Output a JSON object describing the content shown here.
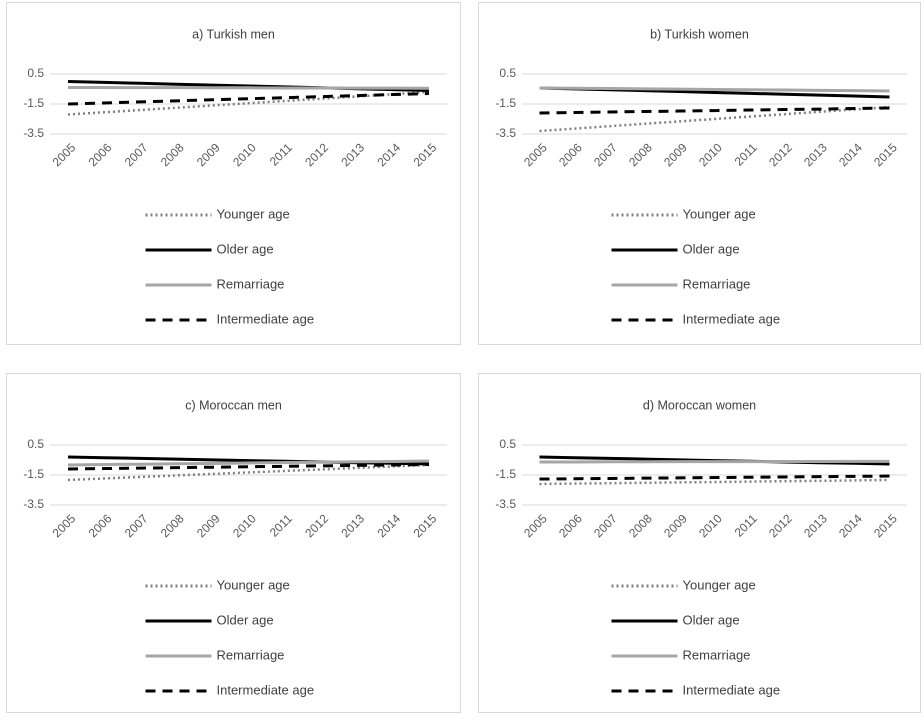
{
  "chart_data": [
    {
      "type": "line",
      "title": "a) Turkish men",
      "categories": [
        "2005",
        "2006",
        "2007",
        "2008",
        "2009",
        "2010",
        "2011",
        "2012",
        "2013",
        "2014",
        "2015"
      ],
      "ylim": [
        -3.5,
        0.5
      ],
      "yticks": [
        0.5,
        -1.5,
        -3.5
      ],
      "grid": true,
      "legend": "bottom",
      "series": [
        {
          "name": "Younger age",
          "color": "#808080",
          "style": "dotted",
          "values": [
            -2.2,
            -2.05,
            -1.9,
            -1.75,
            -1.6,
            -1.45,
            -1.3,
            -1.15,
            -1.0,
            -0.85,
            -0.7
          ]
        },
        {
          "name": "Older age",
          "color": "#000000",
          "style": "solid",
          "values": [
            0.0,
            -0.06,
            -0.12,
            -0.18,
            -0.24,
            -0.3,
            -0.36,
            -0.42,
            -0.48,
            -0.54,
            -0.6
          ]
        },
        {
          "name": "Remarriage",
          "color": "#a6a6a6",
          "style": "solid",
          "values": [
            -0.4,
            -0.4,
            -0.41,
            -0.41,
            -0.42,
            -0.42,
            -0.43,
            -0.43,
            -0.44,
            -0.44,
            -0.45
          ]
        },
        {
          "name": "Intermediate age",
          "color": "#000000",
          "style": "dashed",
          "values": [
            -1.5,
            -1.43,
            -1.36,
            -1.29,
            -1.22,
            -1.15,
            -1.08,
            -1.01,
            -0.94,
            -0.87,
            -0.8
          ]
        }
      ]
    },
    {
      "type": "line",
      "title": "b) Turkish women",
      "categories": [
        "2005",
        "2006",
        "2007",
        "2008",
        "2009",
        "2010",
        "2011",
        "2012",
        "2013",
        "2014",
        "2015"
      ],
      "ylim": [
        -3.5,
        0.5
      ],
      "yticks": [
        0.5,
        -1.5,
        -3.5
      ],
      "grid": true,
      "legend": "bottom",
      "series": [
        {
          "name": "Younger age",
          "color": "#808080",
          "style": "dotted",
          "values": [
            -3.3,
            -3.14,
            -2.98,
            -2.82,
            -2.66,
            -2.5,
            -2.34,
            -2.18,
            -2.02,
            -1.86,
            -1.7
          ]
        },
        {
          "name": "Older age",
          "color": "#000000",
          "style": "solid",
          "values": [
            -0.43,
            -0.49,
            -0.55,
            -0.61,
            -0.67,
            -0.73,
            -0.79,
            -0.85,
            -0.91,
            -0.97,
            -1.03
          ]
        },
        {
          "name": "Remarriage",
          "color": "#a6a6a6",
          "style": "solid",
          "values": [
            -0.43,
            -0.45,
            -0.47,
            -0.49,
            -0.51,
            -0.53,
            -0.55,
            -0.57,
            -0.59,
            -0.61,
            -0.63
          ]
        },
        {
          "name": "Intermediate age",
          "color": "#000000",
          "style": "dashed",
          "values": [
            -2.1,
            -2.07,
            -2.03,
            -2.0,
            -1.97,
            -1.94,
            -1.9,
            -1.87,
            -1.84,
            -1.8,
            -1.77
          ]
        }
      ]
    },
    {
      "type": "line",
      "title": "c) Moroccan men",
      "categories": [
        "2005",
        "2006",
        "2007",
        "2008",
        "2009",
        "2010",
        "2011",
        "2012",
        "2013",
        "2014",
        "2015"
      ],
      "ylim": [
        -3.5,
        0.5
      ],
      "yticks": [
        0.5,
        -1.5,
        -3.5
      ],
      "grid": true,
      "legend": "bottom",
      "series": [
        {
          "name": "Younger age",
          "color": "#808080",
          "style": "dotted",
          "values": [
            -1.83,
            -1.73,
            -1.63,
            -1.53,
            -1.43,
            -1.33,
            -1.23,
            -1.13,
            -1.03,
            -0.93,
            -0.83
          ]
        },
        {
          "name": "Older age",
          "color": "#000000",
          "style": "solid",
          "values": [
            -0.3,
            -0.35,
            -0.39,
            -0.44,
            -0.49,
            -0.54,
            -0.58,
            -0.63,
            -0.68,
            -0.72,
            -0.77
          ]
        },
        {
          "name": "Remarriage",
          "color": "#a6a6a6",
          "style": "solid",
          "values": [
            -0.83,
            -0.8,
            -0.78,
            -0.75,
            -0.73,
            -0.7,
            -0.67,
            -0.65,
            -0.62,
            -0.6,
            -0.57
          ]
        },
        {
          "name": "Intermediate age",
          "color": "#000000",
          "style": "dashed",
          "values": [
            -1.1,
            -1.07,
            -1.04,
            -1.01,
            -0.98,
            -0.95,
            -0.92,
            -0.89,
            -0.86,
            -0.83,
            -0.8
          ]
        }
      ]
    },
    {
      "type": "line",
      "title": "d) Moroccan women",
      "categories": [
        "2005",
        "2006",
        "2007",
        "2008",
        "2009",
        "2010",
        "2011",
        "2012",
        "2013",
        "2014",
        "2015"
      ],
      "ylim": [
        -3.5,
        0.5
      ],
      "yticks": [
        0.5,
        -1.5,
        -3.5
      ],
      "grid": true,
      "legend": "bottom",
      "series": [
        {
          "name": "Younger age",
          "color": "#808080",
          "style": "dotted",
          "values": [
            -2.1,
            -2.07,
            -2.05,
            -2.02,
            -1.99,
            -1.97,
            -1.94,
            -1.91,
            -1.89,
            -1.86,
            -1.83
          ]
        },
        {
          "name": "Older age",
          "color": "#000000",
          "style": "solid",
          "values": [
            -0.3,
            -0.35,
            -0.39,
            -0.44,
            -0.49,
            -0.54,
            -0.58,
            -0.63,
            -0.68,
            -0.72,
            -0.77
          ]
        },
        {
          "name": "Remarriage",
          "color": "#a6a6a6",
          "style": "solid",
          "values": [
            -0.63,
            -0.63,
            -0.62,
            -0.62,
            -0.61,
            -0.61,
            -0.61,
            -0.6,
            -0.6,
            -0.59,
            -0.59
          ]
        },
        {
          "name": "Intermediate age",
          "color": "#000000",
          "style": "dashed",
          "values": [
            -1.77,
            -1.75,
            -1.73,
            -1.71,
            -1.69,
            -1.67,
            -1.65,
            -1.63,
            -1.61,
            -1.59,
            -1.57
          ]
        }
      ]
    }
  ]
}
